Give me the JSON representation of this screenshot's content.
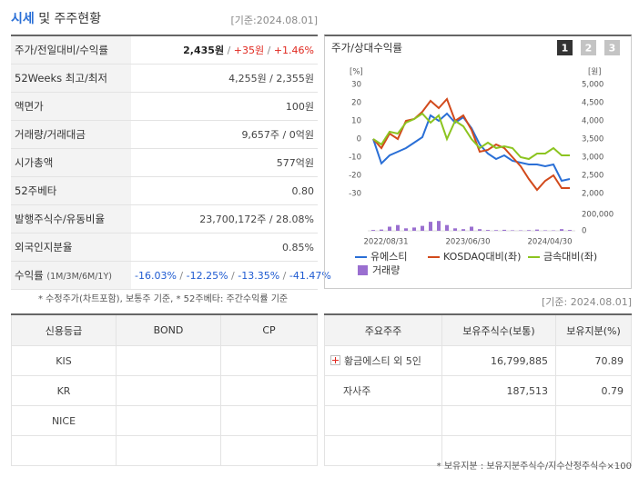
{
  "header": {
    "title": "시세",
    "title_rest": "및 주주현황",
    "date": "[기준:2024.08.01]"
  },
  "summary_table": {
    "rows": [
      {
        "label": "주가/전일대비/수익률",
        "segments": [
          "2,435원",
          " / ",
          "+35원",
          " / ",
          "+1.46%"
        ],
        "segment_colors": [
          "#222222",
          "#888888",
          "#e0281f",
          "#888888",
          "#e0281f"
        ]
      },
      {
        "label": "52Weeks 최고/최저",
        "segments": [
          "4,255원 / 2,355원"
        ],
        "segment_colors": [
          "#444444"
        ]
      },
      {
        "label": "액면가",
        "segments": [
          "100원"
        ],
        "segment_colors": [
          "#444444"
        ]
      },
      {
        "label": "거래량/거래대금",
        "segments": [
          "9,657주 / 0억원"
        ],
        "segment_colors": [
          "#444444"
        ]
      },
      {
        "label": "시가총액",
        "segments": [
          "577억원"
        ],
        "segment_colors": [
          "#444444"
        ]
      },
      {
        "label": "52주베타",
        "segments": [
          "0.80"
        ],
        "segment_colors": [
          "#444444"
        ]
      },
      {
        "label": "발행주식수/유동비율",
        "segments": [
          "23,700,172주 / 28.08%"
        ],
        "segment_colors": [
          "#444444"
        ]
      },
      {
        "label": "외국인지분율",
        "segments": [
          "0.85%"
        ],
        "segment_colors": [
          "#444444"
        ]
      },
      {
        "label": "수익률",
        "sub": "(1M/3M/6M/1Y)",
        "segments": [
          "-16.03%",
          " / ",
          "-12.25%",
          " / ",
          "-13.35%",
          " / ",
          "-41.47%"
        ],
        "segment_colors": [
          "#1f5bd1",
          "#888888",
          "#1f5bd1",
          "#888888",
          "#1f5bd1",
          "#888888",
          "#1f5bd1"
        ]
      }
    ]
  },
  "note": "* 수정주가(차트포함), 보통주 기준, * 52주베타: 주간수익률 기준",
  "price_chart": {
    "type": "line",
    "title": "주가/상대수익률",
    "buttons": [
      "1",
      "2",
      "3"
    ],
    "ylabel": "[%]",
    "y2label": "[원]",
    "ylim": [
      -30,
      30
    ],
    "yticks": [
      -30,
      -20,
      -10,
      0,
      10,
      20,
      30
    ],
    "y2lim": [
      2000,
      5000
    ],
    "y2ticks": [
      {
        "value": 2000,
        "label": "2,000"
      },
      {
        "value": 2500,
        "label": "2,500"
      },
      {
        "value": 3000,
        "label": "3,000"
      },
      {
        "value": 3500,
        "label": "3,500"
      },
      {
        "value": 4000,
        "label": "4,000"
      },
      {
        "value": 4500,
        "label": "4,500"
      },
      {
        "value": 5000,
        "label": "5,000"
      }
    ],
    "x": [
      0,
      1,
      2,
      3,
      4,
      5,
      6,
      7,
      8,
      9,
      10,
      11,
      12,
      13,
      14,
      15,
      16,
      17,
      18,
      19,
      20,
      21,
      22,
      23,
      24
    ],
    "xlim": [
      0,
      24
    ],
    "xticks": [
      {
        "value": 0,
        "label": "2022/08/31"
      },
      {
        "value": 10,
        "label": "2023/06/30"
      },
      {
        "value": 20,
        "label": "2024/04/30"
      }
    ],
    "series": [
      {
        "name": "유에스티",
        "color": "#2a6fd6",
        "axis": "y2",
        "values": [
          3500,
          2830,
          3050,
          3150,
          3250,
          3400,
          3550,
          4150,
          4000,
          4200,
          3950,
          4100,
          3800,
          3350,
          3100,
          2950,
          3050,
          2900,
          2850,
          2800,
          2800,
          2750,
          2800,
          2350,
          2400
        ]
      },
      {
        "name": "KOSDAQ대비(좌)",
        "color": "#d24a1c",
        "values": [
          0,
          -5,
          3,
          0,
          10,
          11,
          15,
          21,
          17,
          22,
          10,
          13,
          5,
          -7,
          -6,
          -3,
          -5,
          -10,
          -15,
          -22,
          -28,
          -23,
          -20,
          -27,
          -27
        ]
      },
      {
        "name": "금속대비(좌)",
        "color": "#8cc420",
        "values": [
          0,
          -3,
          4,
          3,
          9,
          11,
          14,
          9,
          13,
          0,
          10,
          7,
          0,
          -5,
          -2,
          -5,
          -4,
          -5,
          -10,
          -11,
          -8,
          -8,
          -5,
          -9,
          -9
        ]
      }
    ],
    "volume": {
      "name": "거래량",
      "color": "#9a6fd0",
      "ylim": [
        0,
        200000
      ],
      "yticks": [
        0,
        {
          "value": 200000,
          "label": "200,000"
        }
      ],
      "values": [
        10000,
        15000,
        50000,
        70000,
        30000,
        40000,
        60000,
        110000,
        120000,
        70000,
        30000,
        20000,
        50000,
        20000,
        10000,
        8000,
        12000,
        6000,
        5000,
        8000,
        15000,
        6000,
        5000,
        20000,
        10000
      ]
    }
  },
  "credit_table": {
    "header": [
      "신용등급",
      "BOND",
      "CP"
    ],
    "rows": [
      [
        "KIS"
      ],
      [
        "KR"
      ],
      [
        "NICE"
      ]
    ]
  },
  "holders": {
    "date": "[기준: 2024.08.01]",
    "header": [
      "주요주주",
      "보유주식수(보통)",
      "보유지분(%)"
    ],
    "rows": [
      [
        "황금에스티 외 5인",
        "16,799,885",
        "70.89"
      ],
      [
        "자사주",
        "187,513",
        "0.79"
      ]
    ],
    "note": "* 보유지분 : 보유지분주식수/지수산정주식수×100"
  }
}
